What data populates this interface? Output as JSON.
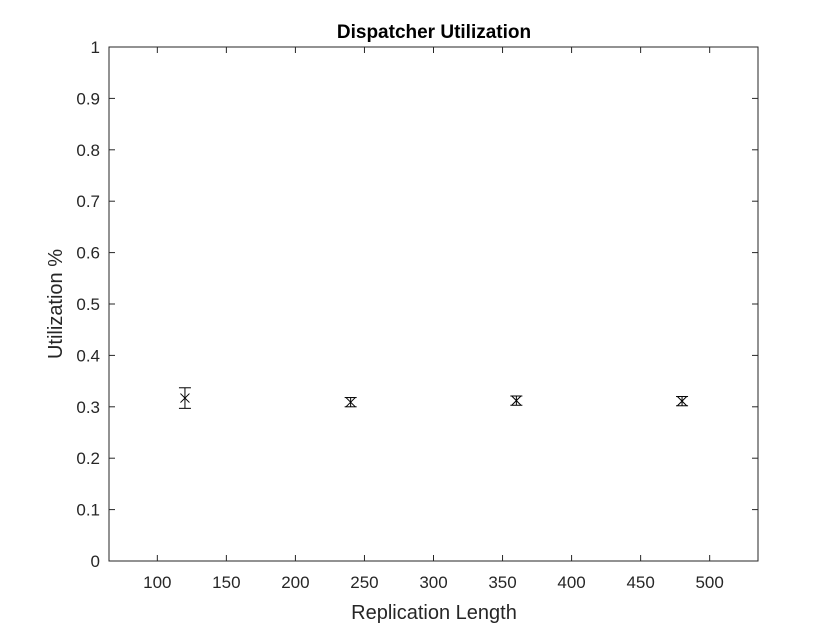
{
  "chart_data": {
    "type": "scatter",
    "title": "Dispatcher Utilization",
    "xlabel": "Replication Length",
    "ylabel": "Utilization %",
    "xlim": [
      65,
      535
    ],
    "ylim": [
      0,
      1
    ],
    "xticks": [
      100,
      150,
      200,
      250,
      300,
      350,
      400,
      450,
      500
    ],
    "yticks": [
      0,
      0.1,
      0.2,
      0.3,
      0.4,
      0.5,
      0.6,
      0.7,
      0.8,
      0.9,
      1
    ],
    "grid": false,
    "legend": "none",
    "marker": "x",
    "errorbars": true,
    "points": [
      {
        "x": 120,
        "y": 0.317,
        "low": 0.297,
        "high": 0.337
      },
      {
        "x": 240,
        "y": 0.309,
        "low": 0.3,
        "high": 0.318
      },
      {
        "x": 360,
        "y": 0.312,
        "low": 0.303,
        "high": 0.321
      },
      {
        "x": 480,
        "y": 0.311,
        "low": 0.302,
        "high": 0.32
      }
    ],
    "colors": {
      "axes": "#262626",
      "marker": "#000000",
      "background": "#ffffff"
    }
  }
}
